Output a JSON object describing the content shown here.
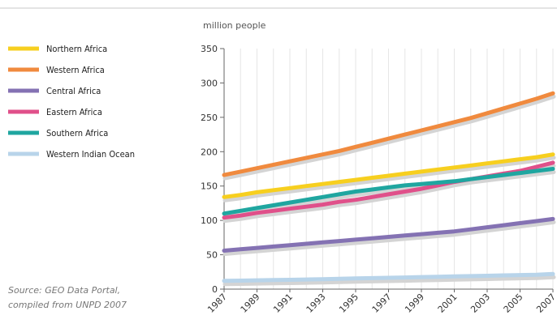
{
  "chart_data": {
    "type": "line",
    "ylabel": "million people",
    "ylim": [
      0,
      350
    ],
    "yticks": [
      0,
      50,
      100,
      150,
      200,
      250,
      300,
      350
    ],
    "x": [
      1987,
      1988,
      1989,
      1990,
      1991,
      1992,
      1993,
      1994,
      1995,
      1996,
      1997,
      1998,
      1999,
      2000,
      2001,
      2002,
      2003,
      2004,
      2005,
      2006,
      2007
    ],
    "xticks": [
      "1987",
      "1989",
      "1991",
      "1993",
      "1995",
      "1997",
      "1999",
      "2001",
      "2003",
      "2005",
      "2007"
    ],
    "grid": "vertical",
    "legend_position": "left",
    "series": [
      {
        "name": "Northern Africa",
        "color": "#f7cf1f",
        "values": [
          134,
          137,
          141,
          144,
          147,
          150,
          153,
          156,
          159,
          162,
          165,
          168,
          171,
          174,
          177,
          180,
          183,
          186,
          189,
          192,
          196
        ]
      },
      {
        "name": "Western Africa",
        "color": "#f08a3e",
        "values": [
          166,
          171,
          176,
          181,
          186,
          191,
          196,
          201,
          207,
          213,
          219,
          225,
          231,
          237,
          243,
          249,
          256,
          263,
          270,
          277,
          285
        ]
      },
      {
        "name": "Central Africa",
        "color": "#8472b3",
        "values": [
          56,
          58,
          60,
          62,
          64,
          66,
          68,
          70,
          72,
          74,
          76,
          78,
          80,
          82,
          84,
          87,
          90,
          93,
          96,
          99,
          102
        ]
      },
      {
        "name": "Eastern Africa",
        "color": "#e0508a",
        "values": [
          104,
          107,
          111,
          114,
          117,
          120,
          123,
          127,
          130,
          134,
          138,
          142,
          146,
          151,
          156,
          160,
          164,
          168,
          172,
          178,
          184
        ]
      },
      {
        "name": "Southern Africa",
        "color": "#1fa6a0",
        "values": [
          110,
          114,
          118,
          122,
          126,
          130,
          134,
          138,
          142,
          145,
          148,
          151,
          153,
          155,
          157,
          160,
          163,
          166,
          169,
          172,
          175
        ]
      },
      {
        "name": "Western Indian Ocean",
        "color": "#b8d4ea",
        "values": [
          12,
          12.4,
          12.8,
          13.2,
          13.6,
          14,
          14.5,
          15,
          15.5,
          16,
          16.5,
          17,
          17.5,
          18,
          18.5,
          19,
          19.5,
          20,
          20.5,
          21,
          22
        ]
      }
    ]
  },
  "source": {
    "line1": "Source: GEO Data Portal,",
    "line2": "compiled from UNPD 2007"
  }
}
